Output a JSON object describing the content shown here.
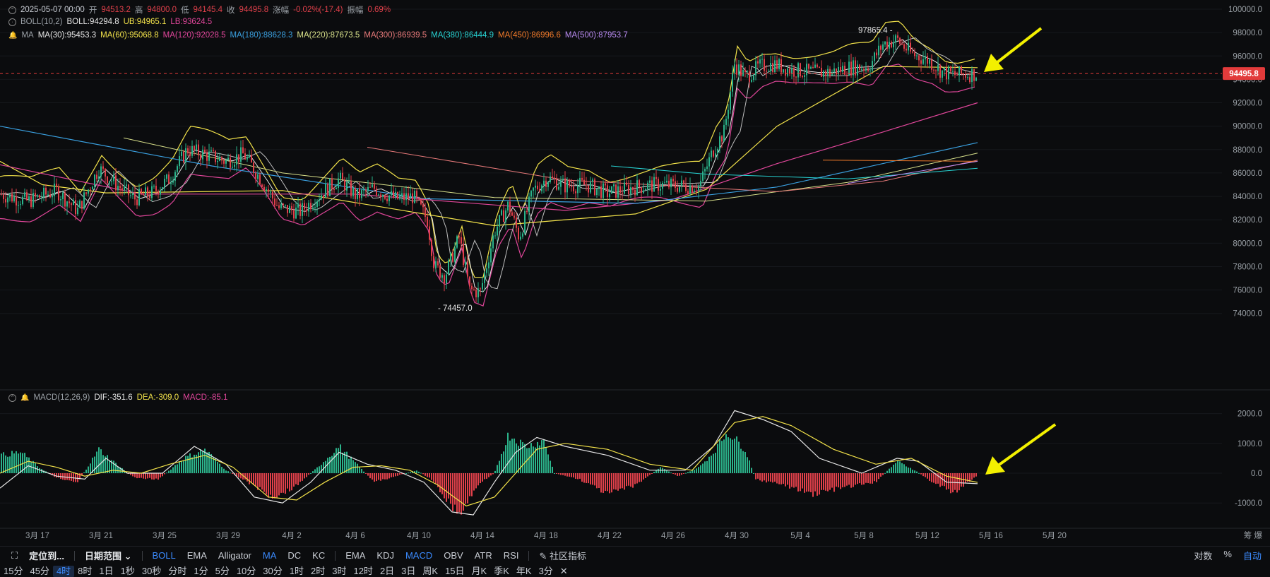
{
  "ohlc": {
    "date": "2025-05-07 00:00",
    "open_label": "开",
    "open": "94513.2",
    "high_label": "高",
    "high": "94800.0",
    "low_label": "低",
    "low": "94145.4",
    "close_label": "收",
    "close": "94495.8",
    "chg_label": "涨幅",
    "chg": "-0.02%(-17.4)",
    "amp_label": "振幅",
    "amp": "0.69%"
  },
  "boll": {
    "name": "BOLL(10,2)",
    "mid": "BOLL:94294.8",
    "ub": "UB:94965.1",
    "lb": "LB:93624.5"
  },
  "ma": {
    "name": "MA",
    "items": [
      {
        "text": "MA(30):95453.3",
        "color": "#e6e6e6"
      },
      {
        "text": "MA(60):95068.8",
        "color": "#f2e24a"
      },
      {
        "text": "MA(120):92028.5",
        "color": "#e0469a"
      },
      {
        "text": "MA(180):88628.3",
        "color": "#3aa0e0"
      },
      {
        "text": "MA(220):87673.5",
        "color": "#d8e08a"
      },
      {
        "text": "MA(300):86939.5",
        "color": "#e87a7a"
      },
      {
        "text": "MA(380):86444.9",
        "color": "#27d3d3"
      },
      {
        "text": "MA(450):86996.6",
        "color": "#f07a2a"
      },
      {
        "text": "MA(500):87953.7",
        "color": "#b88af0"
      }
    ]
  },
  "macd": {
    "name": "MACD(12,26,9)",
    "dif": "DIF:-351.6",
    "dea": "DEA:-309.0",
    "macd": "MACD:-85.1"
  },
  "price_axis": [
    "100000.0",
    "98000.0",
    "96000.0",
    "94000.0",
    "92000.0",
    "90000.0",
    "88000.0",
    "86000.0",
    "84000.0",
    "82000.0",
    "80000.0",
    "78000.0",
    "76000.0",
    "74000.0"
  ],
  "price_levels": [
    100000,
    98000,
    96000,
    94000,
    92000,
    90000,
    88000,
    86000,
    84000,
    82000,
    80000,
    78000,
    76000,
    74000
  ],
  "current_price": "94495.8",
  "current_price_value": 94495.8,
  "high_label": "97865.4",
  "high_value": 97865.4,
  "low_label": "74457.0",
  "low_value": 74457.0,
  "macd_axis": [
    "2000.0",
    "1000.0",
    "0.0",
    "-1000.0"
  ],
  "macd_levels": [
    2000,
    1000,
    0,
    -1000
  ],
  "date_axis": [
    "3月 17",
    "3月 21",
    "3月 25",
    "3月 29",
    "4月 2",
    "4月 6",
    "4月 10",
    "4月 14",
    "4月 18",
    "4月 22",
    "4月 26",
    "4月 30",
    "5月 4",
    "5月 8",
    "5月 12",
    "5月 16",
    "5月 20"
  ],
  "axis_corner": [
    "筹",
    "爆"
  ],
  "colors": {
    "up": "#2bb38a",
    "down": "#e0404a",
    "accent": "#3b8bff",
    "arrow": "#f3f000",
    "price_tag": "#e23b3b"
  },
  "toolbar": {
    "locate": "定位到...",
    "date_range": "日期范围",
    "main_indicators": [
      "BOLL",
      "EMA",
      "Alligator",
      "MA",
      "DC",
      "KC"
    ],
    "main_active": [
      "BOLL",
      "MA"
    ],
    "sub_indicators": [
      "EMA",
      "KDJ",
      "MACD",
      "OBV",
      "ATR",
      "RSI"
    ],
    "sub_active": [
      "MACD"
    ],
    "community": "社区指标",
    "right": [
      "对数",
      "%",
      "自动"
    ]
  },
  "timeframes": [
    "15分",
    "45分",
    "4时",
    "8时",
    "1日",
    "1秒",
    "30秒",
    "分时",
    "1分",
    "5分",
    "10分",
    "30分",
    "1时",
    "2时",
    "3时",
    "12时",
    "2日",
    "3日",
    "周K",
    "15日",
    "月K",
    "季K",
    "年K",
    "3分"
  ],
  "timeframe_active": "4时"
}
